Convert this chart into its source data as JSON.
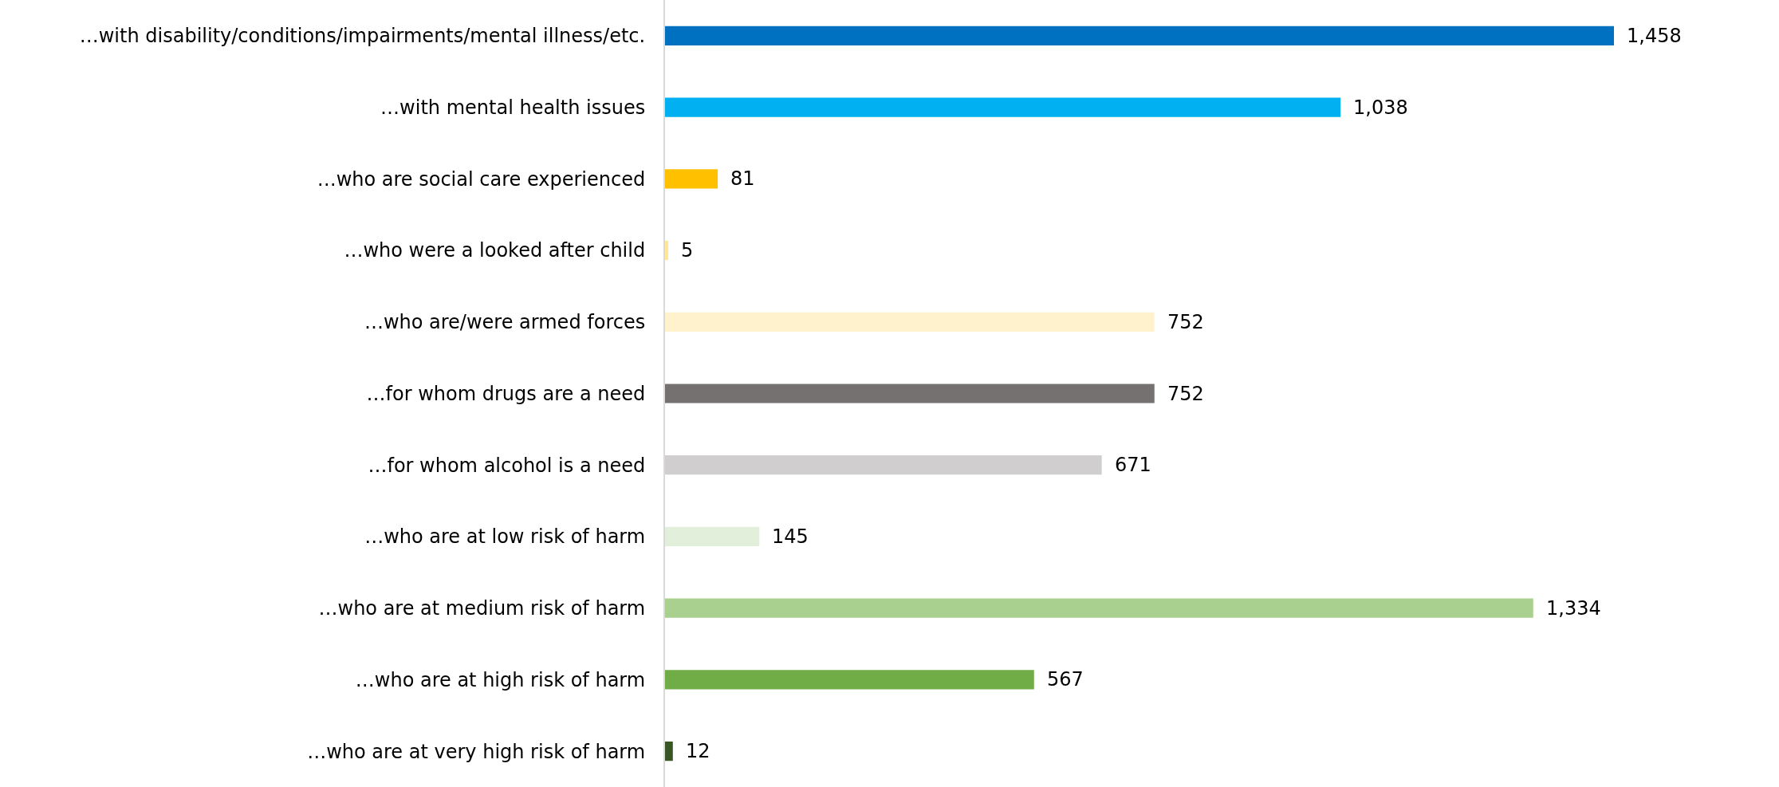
{
  "chart_data": {
    "type": "bar",
    "orientation": "horizontal",
    "value_labels": [
      "1,458",
      "1,038",
      "81",
      "5",
      "752",
      "752",
      "671",
      "145",
      "1,334",
      "567",
      "12"
    ],
    "categories": [
      "…with disability/conditions/impairments/mental illness/etc.",
      "…with mental health issues",
      "…who are social care experienced",
      "…who were a looked after child",
      "…who are/were armed forces",
      "…for whom drugs are a need",
      "…for whom alcohol is a need",
      "…who are at low risk of harm",
      "…who are at medium risk of harm",
      "…who are at high risk of harm",
      "…who are at very high risk of harm"
    ],
    "values": [
      1458,
      1038,
      81,
      5,
      752,
      752,
      671,
      145,
      1334,
      567,
      12
    ],
    "colors": [
      "#0070c0",
      "#00b0f0",
      "#ffc000",
      "#ffe699",
      "#fff2cc",
      "#767171",
      "#d0cece",
      "#e2efda",
      "#a9d08e",
      "#70ad47",
      "#375623"
    ],
    "tick_labels": "y"
  }
}
